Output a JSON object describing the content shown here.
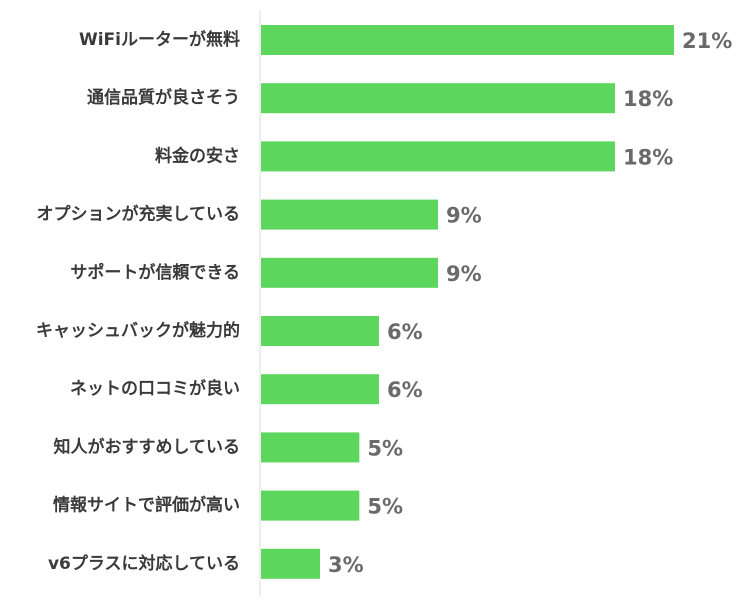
{
  "chart_data": {
    "type": "bar",
    "orientation": "horizontal",
    "categories": [
      "WiFiルーターが無料",
      "通信品質が良さそう",
      "料金の安さ",
      "オプションが充実している",
      "サポートが信頼できる",
      "キャッシュバックが魅力的",
      "ネットの口コミが良い",
      "知人がおすすめしている",
      "情報サイトで評価が高い",
      "v6プラスに対応している"
    ],
    "values": [
      21,
      18,
      18,
      9,
      9,
      6,
      6,
      5,
      5,
      3
    ],
    "value_labels": [
      "21%",
      "18%",
      "18%",
      "9%",
      "9%",
      "6%",
      "6%",
      "5%",
      "5%",
      "3%"
    ],
    "unit": "%",
    "xlim": [
      0,
      21
    ],
    "grid": false,
    "legend": "none",
    "bar_color": "#5cd65c"
  }
}
